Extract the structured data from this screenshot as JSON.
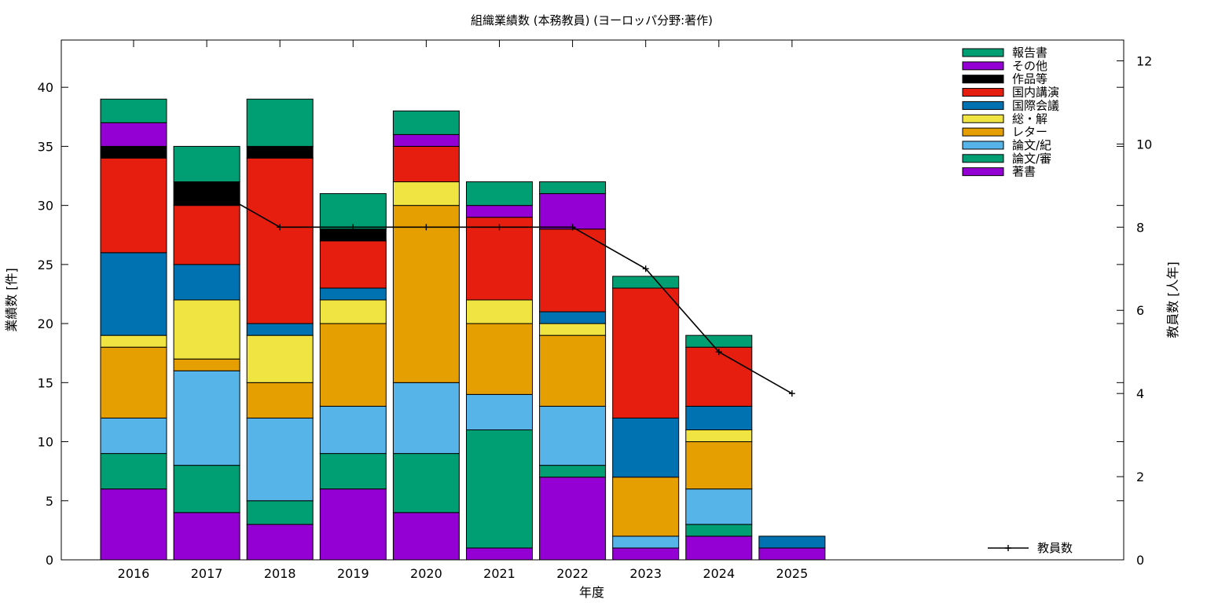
{
  "chart_data": {
    "type": "bar",
    "stacked": true,
    "title": "組織業績数 (本務教員) (ヨーロッパ分野:著作)",
    "xlabel": "年度",
    "ylabel": "業績数 [件]",
    "y2label": "教員数 [人年]",
    "categories": [
      "2016",
      "2017",
      "2018",
      "2019",
      "2020",
      "2021",
      "2022",
      "2023",
      "2024",
      "2025"
    ],
    "ylim": [
      0,
      44
    ],
    "yticks": [
      0,
      5,
      10,
      15,
      20,
      25,
      30,
      35,
      40
    ],
    "y2lim": [
      0,
      12.5
    ],
    "y2ticks": [
      0,
      2,
      4,
      6,
      8,
      10,
      12
    ],
    "grid": false,
    "legend_position": "top-right",
    "series": [
      {
        "name": "著書",
        "color": "#9400d3",
        "values": [
          6,
          4,
          3,
          6,
          4,
          1,
          7,
          1,
          2,
          1
        ]
      },
      {
        "name": "論文/審",
        "color": "#009e73",
        "values": [
          3,
          4,
          2,
          3,
          5,
          10,
          1,
          0,
          1,
          0
        ]
      },
      {
        "name": "論文/紀",
        "color": "#56b4e9",
        "values": [
          3,
          8,
          7,
          4,
          6,
          3,
          5,
          1,
          3,
          0
        ]
      },
      {
        "name": "レター",
        "color": "#e69f00",
        "values": [
          6,
          1,
          3,
          7,
          15,
          6,
          6,
          5,
          4,
          0
        ]
      },
      {
        "name": "総・解",
        "color": "#f0e442",
        "values": [
          1,
          5,
          4,
          2,
          2,
          2,
          1,
          0,
          1,
          0
        ]
      },
      {
        "name": "国際会議",
        "color": "#0072b2",
        "values": [
          7,
          3,
          1,
          1,
          0,
          0,
          1,
          5,
          2,
          1
        ]
      },
      {
        "name": "国内講演",
        "color": "#e51e10",
        "values": [
          8,
          5,
          14,
          4,
          3,
          7,
          7,
          11,
          5,
          0
        ]
      },
      {
        "name": "作品等",
        "color": "#000000",
        "values": [
          1,
          2,
          1,
          1,
          0,
          0,
          0,
          0,
          0,
          0
        ]
      },
      {
        "name": "その他",
        "color": "#9400d3",
        "values": [
          2,
          0,
          0,
          0,
          1,
          1,
          3,
          0,
          0,
          0
        ]
      },
      {
        "name": "報告書",
        "color": "#009e73",
        "values": [
          2,
          3,
          4,
          3,
          2,
          2,
          1,
          1,
          1,
          0
        ]
      }
    ],
    "line_series": {
      "name": "教員数",
      "color": "#000000",
      "axis": "y2",
      "x": [
        "2017",
        "2018",
        "2019",
        "2020",
        "2021",
        "2022",
        "2023",
        "2024",
        "2025"
      ],
      "values": [
        9,
        8,
        8,
        8,
        8,
        8,
        7,
        5,
        4
      ]
    }
  }
}
